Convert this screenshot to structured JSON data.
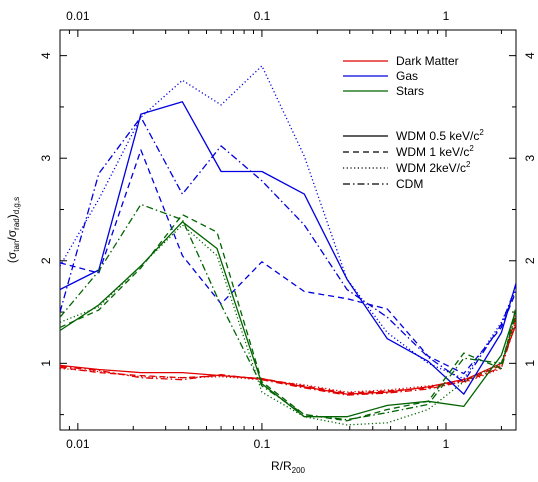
{
  "chart_data": {
    "type": "line",
    "xlabel": "R/R",
    "xlabel_sub": "200",
    "ylabel": "(σ",
    "ylabel_sub1": "tan",
    "ylabel_mid": "/σ",
    "ylabel_sub2": "rad",
    "ylabel_close": ")",
    "ylabel_sub3": "d,g,s",
    "x_scale": "log",
    "xlim": [
      0.008,
      2.4
    ],
    "ylim": [
      0.35,
      4.25
    ],
    "x_ticks": [
      0.01,
      0.1,
      1
    ],
    "x_tick_labels": [
      "0.01",
      "0.1",
      "1"
    ],
    "y_ticks": [
      1,
      2,
      3,
      4
    ],
    "y_tick_labels": [
      "1",
      "2",
      "3",
      "4"
    ],
    "grid": false,
    "legend_components": {
      "title": "",
      "placement": "top-right",
      "entries": [
        {
          "label": "Dark Matter",
          "color": "#e00000"
        },
        {
          "label": "Gas",
          "color": "#0000e0"
        },
        {
          "label": "Stars",
          "color": "#006400"
        }
      ]
    },
    "legend_models": {
      "placement": "right",
      "entries": [
        {
          "label_main": "WDM 0.5 keV/c",
          "label_sup": "2",
          "dash": "solid"
        },
        {
          "label_main": "WDM 1 keV/c",
          "label_sup": "2",
          "dash": "dashed"
        },
        {
          "label_main": "WDM 2keV/c",
          "label_sup": "2",
          "dash": "dotted"
        },
        {
          "label_main": "CDM",
          "label_sup": "",
          "dash": "dashdot"
        }
      ]
    },
    "colors": {
      "dm": "#e00000",
      "gas": "#0000e0",
      "stars": "#006400"
    },
    "series": [
      {
        "component": "dm",
        "model": "solid",
        "x": [
          0.008,
          0.013,
          0.022,
          0.037,
          0.06,
          0.1,
          0.17,
          0.29,
          0.48,
          0.8,
          1.3,
          2.0,
          2.4
        ],
        "y": [
          0.98,
          0.94,
          0.91,
          0.91,
          0.88,
          0.85,
          0.77,
          0.7,
          0.72,
          0.77,
          0.85,
          1.0,
          1.38
        ]
      },
      {
        "component": "dm",
        "model": "dashed",
        "x": [
          0.008,
          0.013,
          0.022,
          0.037,
          0.06,
          0.1,
          0.17,
          0.29,
          0.48,
          0.8,
          1.3,
          2.0,
          2.4
        ],
        "y": [
          0.96,
          0.91,
          0.88,
          0.86,
          0.88,
          0.85,
          0.78,
          0.71,
          0.73,
          0.76,
          0.84,
          0.98,
          1.45
        ]
      },
      {
        "component": "dm",
        "model": "dotted",
        "x": [
          0.008,
          0.013,
          0.022,
          0.037,
          0.06,
          0.1,
          0.17,
          0.29,
          0.48,
          0.8,
          1.3,
          2.0,
          2.4
        ],
        "y": [
          0.95,
          0.92,
          0.87,
          0.86,
          0.87,
          0.84,
          0.79,
          0.72,
          0.74,
          0.78,
          0.82,
          0.95,
          1.5
        ]
      },
      {
        "component": "dm",
        "model": "dashdot",
        "x": [
          0.008,
          0.013,
          0.022,
          0.037,
          0.06,
          0.1,
          0.17,
          0.29,
          0.48,
          0.8,
          1.3,
          2.0,
          2.4
        ],
        "y": [
          0.97,
          0.93,
          0.86,
          0.84,
          0.89,
          0.84,
          0.76,
          0.69,
          0.71,
          0.75,
          0.83,
          0.96,
          1.4
        ]
      },
      {
        "component": "gas",
        "model": "solid",
        "x": [
          0.008,
          0.013,
          0.022,
          0.037,
          0.06,
          0.1,
          0.17,
          0.29,
          0.48,
          0.8,
          1.25,
          2.0,
          2.4
        ],
        "y": [
          1.72,
          1.91,
          3.43,
          3.55,
          2.87,
          2.87,
          2.65,
          1.82,
          1.24,
          1.02,
          0.7,
          1.3,
          1.78
        ]
      },
      {
        "component": "gas",
        "model": "dashed",
        "x": [
          0.008,
          0.013,
          0.022,
          0.037,
          0.06,
          0.1,
          0.17,
          0.29,
          0.48,
          0.8,
          1.25,
          2.0,
          2.4
        ],
        "y": [
          1.98,
          1.88,
          3.08,
          2.05,
          1.58,
          1.99,
          1.7,
          1.63,
          1.53,
          1.07,
          0.9,
          1.35,
          1.7
        ]
      },
      {
        "component": "gas",
        "model": "dotted",
        "x": [
          0.008,
          0.013,
          0.022,
          0.037,
          0.06,
          0.1,
          0.17,
          0.29,
          0.48,
          0.8,
          1.25,
          2.0,
          2.4
        ],
        "y": [
          1.95,
          2.6,
          3.4,
          3.76,
          3.52,
          3.9,
          3.02,
          1.82,
          1.3,
          1.0,
          0.85,
          1.4,
          1.72
        ]
      },
      {
        "component": "gas",
        "model": "dashdot",
        "x": [
          0.008,
          0.013,
          0.022,
          0.037,
          0.06,
          0.1,
          0.17,
          0.29,
          0.48,
          0.8,
          1.25,
          2.0,
          2.4
        ],
        "y": [
          1.5,
          2.85,
          3.4,
          2.65,
          3.12,
          2.78,
          2.35,
          1.72,
          1.45,
          1.06,
          0.82,
          1.38,
          1.75
        ]
      },
      {
        "component": "stars",
        "model": "solid",
        "x": [
          0.008,
          0.013,
          0.022,
          0.037,
          0.057,
          0.1,
          0.17,
          0.29,
          0.48,
          0.8,
          1.25,
          2.0,
          2.4
        ],
        "y": [
          1.32,
          1.57,
          1.95,
          2.38,
          2.12,
          0.8,
          0.48,
          0.48,
          0.59,
          0.63,
          0.58,
          1.08,
          1.52
        ]
      },
      {
        "component": "stars",
        "model": "dashed",
        "x": [
          0.008,
          0.013,
          0.022,
          0.037,
          0.057,
          0.1,
          0.17,
          0.29,
          0.48,
          0.8,
          1.25,
          2.0,
          2.4
        ],
        "y": [
          1.35,
          1.52,
          1.93,
          2.45,
          2.28,
          0.82,
          0.5,
          0.44,
          0.55,
          0.63,
          1.1,
          0.95,
          1.55
        ]
      },
      {
        "component": "stars",
        "model": "dotted",
        "x": [
          0.008,
          0.013,
          0.022,
          0.037,
          0.057,
          0.1,
          0.17,
          0.29,
          0.48,
          0.8,
          1.25,
          2.0,
          2.4
        ],
        "y": [
          1.4,
          1.55,
          1.95,
          2.35,
          2.05,
          0.72,
          0.48,
          0.4,
          0.42,
          0.55,
          0.82,
          1.0,
          1.42
        ]
      },
      {
        "component": "stars",
        "model": "dashdot",
        "x": [
          0.008,
          0.013,
          0.022,
          0.037,
          0.057,
          0.1,
          0.17,
          0.29,
          0.48,
          0.8,
          1.25,
          2.0,
          2.4
        ],
        "y": [
          1.45,
          1.9,
          2.55,
          2.4,
          1.65,
          0.78,
          0.5,
          0.45,
          0.52,
          0.6,
          1.05,
          1.0,
          1.48
        ]
      }
    ]
  }
}
